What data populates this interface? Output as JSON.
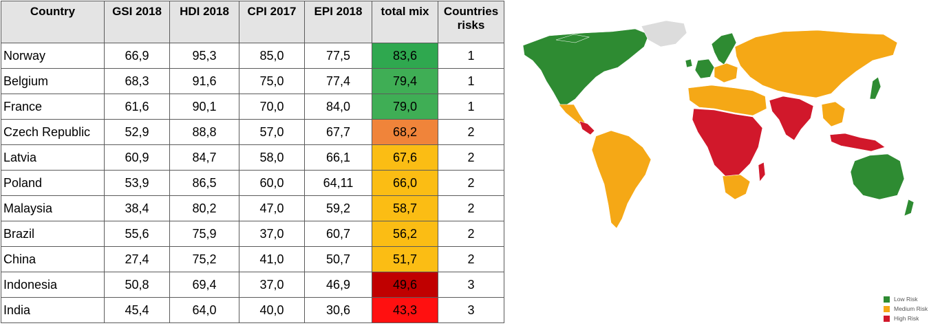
{
  "chart_data": {
    "type": "table",
    "columns": [
      "Country",
      "GSI 2018",
      "HDI 2018",
      "CPI 2017",
      "EPI 2018",
      "total mix",
      "Countries risks"
    ],
    "rows": [
      {
        "country": "Norway",
        "gsi": "66,9",
        "hdi": "95,3",
        "cpi": "85,0",
        "epi": "77,5",
        "mix": "83,6",
        "risk": "1",
        "mix_color": "#2fa84f"
      },
      {
        "country": "Belgium",
        "gsi": "68,3",
        "hdi": "91,6",
        "cpi": "75,0",
        "epi": "77,4",
        "mix": "79,4",
        "risk": "1",
        "mix_color": "#3fae55"
      },
      {
        "country": "France",
        "gsi": "61,6",
        "hdi": "90,1",
        "cpi": "70,0",
        "epi": "84,0",
        "mix": "79,0",
        "risk": "1",
        "mix_color": "#3fae55"
      },
      {
        "country": "Czech Republic",
        "gsi": "52,9",
        "hdi": "88,8",
        "cpi": "57,0",
        "epi": "67,7",
        "mix": "68,2",
        "risk": "2",
        "mix_color": "#f0843a"
      },
      {
        "country": "Latvia",
        "gsi": "60,9",
        "hdi": "84,7",
        "cpi": "58,0",
        "epi": "66,1",
        "mix": "67,6",
        "risk": "2",
        "mix_color": "#fbbd14"
      },
      {
        "country": "Poland",
        "gsi": "53,9",
        "hdi": "86,5",
        "cpi": "60,0",
        "epi": "64,11",
        "mix": "66,0",
        "risk": "2",
        "mix_color": "#fbbd14"
      },
      {
        "country": "Malaysia",
        "gsi": "38,4",
        "hdi": "80,2",
        "cpi": "47,0",
        "epi": "59,2",
        "mix": "58,7",
        "risk": "2",
        "mix_color": "#fbbd14"
      },
      {
        "country": "Brazil",
        "gsi": "55,6",
        "hdi": "75,9",
        "cpi": "37,0",
        "epi": "60,7",
        "mix": "56,2",
        "risk": "2",
        "mix_color": "#fbbd14"
      },
      {
        "country": "China",
        "gsi": "27,4",
        "hdi": "75,2",
        "cpi": "41,0",
        "epi": "50,7",
        "mix": "51,7",
        "risk": "2",
        "mix_color": "#fbbd14"
      },
      {
        "country": "Indonesia",
        "gsi": "50,8",
        "hdi": "69,4",
        "cpi": "37,0",
        "epi": "46,9",
        "mix": "49,6",
        "risk": "3",
        "mix_color": "#c00000"
      },
      {
        "country": "India",
        "gsi": "45,4",
        "hdi": "64,0",
        "cpi": "40,0",
        "epi": "30,6",
        "mix": "43,3",
        "risk": "3",
        "mix_color": "#ff1010"
      }
    ]
  },
  "map": {
    "colors": {
      "low": "#2e8b32",
      "medium": "#f5a816",
      "high": "#d1182b",
      "nodata": "#dcdcdc"
    },
    "legend": [
      {
        "label": "Low Risk",
        "color": "#2e8b32"
      },
      {
        "label": "Medium Risk",
        "color": "#f5a816"
      },
      {
        "label": "High Risk",
        "color": "#d1182b"
      }
    ]
  }
}
